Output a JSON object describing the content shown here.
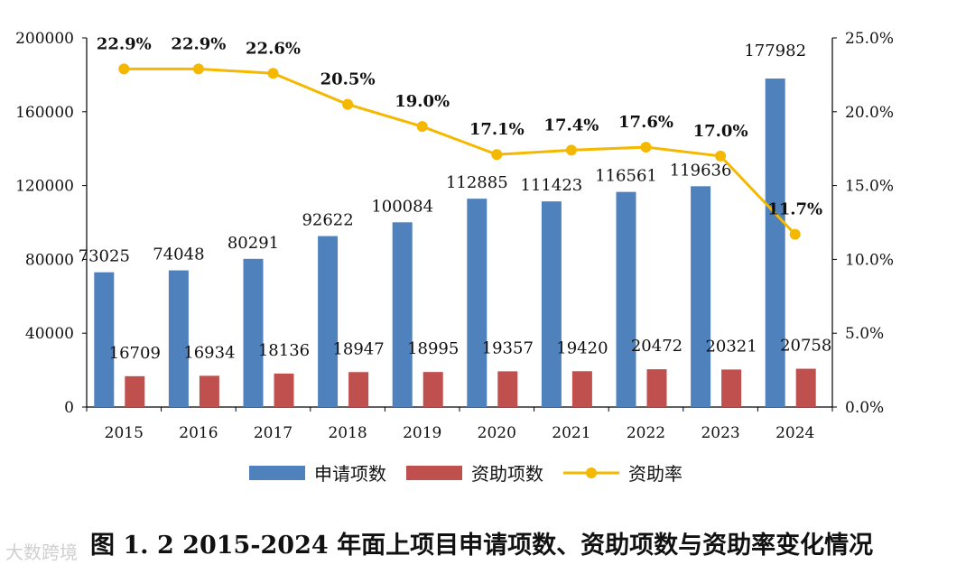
{
  "caption": "图 1. 2  2015-2024 年面上项目申请项数、资助项数与资助率变化情况",
  "watermark": "大数跨境",
  "chart_data": {
    "type": "bar",
    "categories": [
      "2015",
      "2016",
      "2017",
      "2018",
      "2019",
      "2020",
      "2021",
      "2022",
      "2023",
      "2024"
    ],
    "series": [
      {
        "name": "申请项数",
        "type": "bar",
        "axis": "left",
        "color": "#4f81bd",
        "values": [
          73025,
          74048,
          80291,
          92622,
          100084,
          112885,
          111423,
          116561,
          119636,
          177982
        ],
        "labels": [
          "73025",
          "74048",
          "80291",
          "92622",
          "100084",
          "112885",
          "111423",
          "116561",
          "119636",
          "177982"
        ]
      },
      {
        "name": "资助项数",
        "type": "bar",
        "axis": "left",
        "color": "#c0504d",
        "values": [
          16709,
          16934,
          18136,
          18947,
          18995,
          19357,
          19420,
          20472,
          20321,
          20758
        ],
        "labels": [
          "16709",
          "16934",
          "18136",
          "18947",
          "18995",
          "19357",
          "19420",
          "20472",
          "20321",
          "20758"
        ]
      },
      {
        "name": "资助率",
        "type": "line",
        "axis": "right",
        "color": "#f5b800",
        "values": [
          22.9,
          22.9,
          22.6,
          20.5,
          19.0,
          17.1,
          17.4,
          17.6,
          17.0,
          11.7
        ],
        "labels": [
          "22.9%",
          "22.9%",
          "22.6%",
          "20.5%",
          "19.0%",
          "17.1%",
          "17.4%",
          "17.6%",
          "17.0%",
          "11.7%"
        ]
      }
    ],
    "y_left": {
      "min": 0,
      "max": 200000,
      "ticks": [
        "0",
        "40000",
        "80000",
        "120000",
        "160000",
        "200000"
      ]
    },
    "y_right": {
      "min": 0,
      "max": 25,
      "ticks": [
        "0.0%",
        "5.0%",
        "10.0%",
        "15.0%",
        "20.0%",
        "25.0%"
      ]
    },
    "legend_position": "bottom",
    "grid": false
  }
}
